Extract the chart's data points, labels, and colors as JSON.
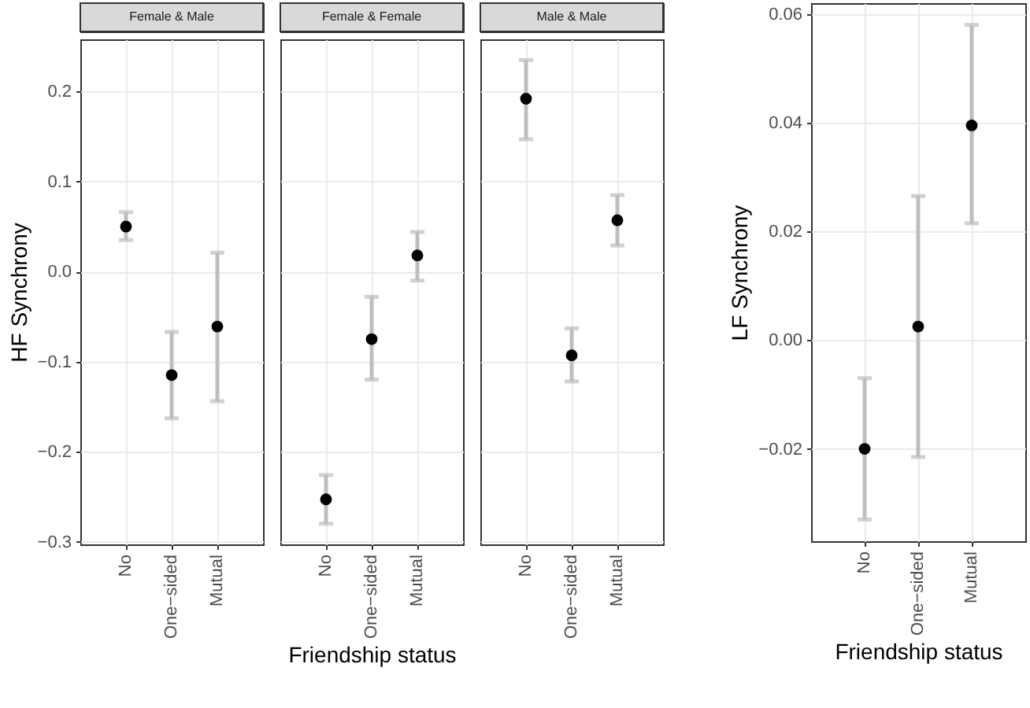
{
  "chart_data": [
    {
      "type": "scatter",
      "title": "Female & Male",
      "ylabel": "HF Synchrony",
      "categories": [
        "No",
        "One−sided",
        "Mutual"
      ],
      "ylim": [
        -0.303,
        0.258
      ],
      "yticks": [
        {
          "value": -0.3,
          "label": "−0.3"
        },
        {
          "value": -0.2,
          "label": "−0.2"
        },
        {
          "value": -0.1,
          "label": "−0.1"
        },
        {
          "value": 0,
          "label": "0.0"
        },
        0.1,
        0.2
      ],
      "grid": true,
      "marker": "circle",
      "series": [
        {
          "color": "#000000",
          "values": [
            0.05,
            -0.115,
            -0.061
          ],
          "errors": [
            [
              0.035,
              0.066
            ],
            [
              -0.163,
              -0.067
            ],
            [
              -0.144,
              0.021
            ]
          ]
        }
      ]
    },
    {
      "type": "scatter",
      "title": "Female & Female",
      "xlabel": "Friendship status",
      "categories": [
        "No",
        "One−sided",
        "Mutual"
      ],
      "ylim": [
        -0.303,
        0.258
      ],
      "yticks": [
        -0.3,
        -0.2,
        -0.1,
        0,
        0.1,
        0.2
      ],
      "grid": true,
      "marker": "circle",
      "tick_labels": "x",
      "series": [
        {
          "color": "#000000",
          "values": [
            -0.253,
            -0.075,
            0.018
          ],
          "errors": [
            [
              -0.28,
              -0.226
            ],
            [
              -0.12,
              -0.028
            ],
            [
              -0.01,
              0.044
            ]
          ]
        }
      ]
    },
    {
      "type": "scatter",
      "title": "Male & Male",
      "categories": [
        "No",
        "One−sided",
        "Mutual"
      ],
      "ylim": [
        -0.303,
        0.258
      ],
      "yticks": [
        -0.3,
        -0.2,
        -0.1,
        0,
        0.1,
        0.2
      ],
      "grid": true,
      "marker": "circle",
      "tick_labels": "x",
      "series": [
        {
          "color": "#000000",
          "values": [
            0.192,
            -0.093,
            0.057
          ],
          "errors": [
            [
              0.147,
              0.235
            ],
            [
              -0.122,
              -0.063
            ],
            [
              0.029,
              0.085
            ]
          ]
        }
      ]
    },
    {
      "type": "scatter",
      "xlabel": "Friendship status",
      "ylabel": "LF Synchrony",
      "categories": [
        "No",
        "One−sided",
        "Mutual"
      ],
      "ylim": [
        -0.037,
        0.062
      ],
      "yticks": [
        {
          "value": -0.02,
          "label": "−0.02"
        },
        {
          "value": 0,
          "label": "0.00"
        },
        0.02,
        0.04,
        0.06
      ],
      "grid": true,
      "marker": "circle",
      "series": [
        {
          "color": "#000000",
          "values": [
            -0.02,
            0.0025,
            0.0395
          ],
          "errors": [
            [
              -0.033,
              -0.007
            ],
            [
              -0.0215,
              0.0265
            ],
            [
              0.0215,
              0.058
            ]
          ]
        }
      ]
    }
  ]
}
